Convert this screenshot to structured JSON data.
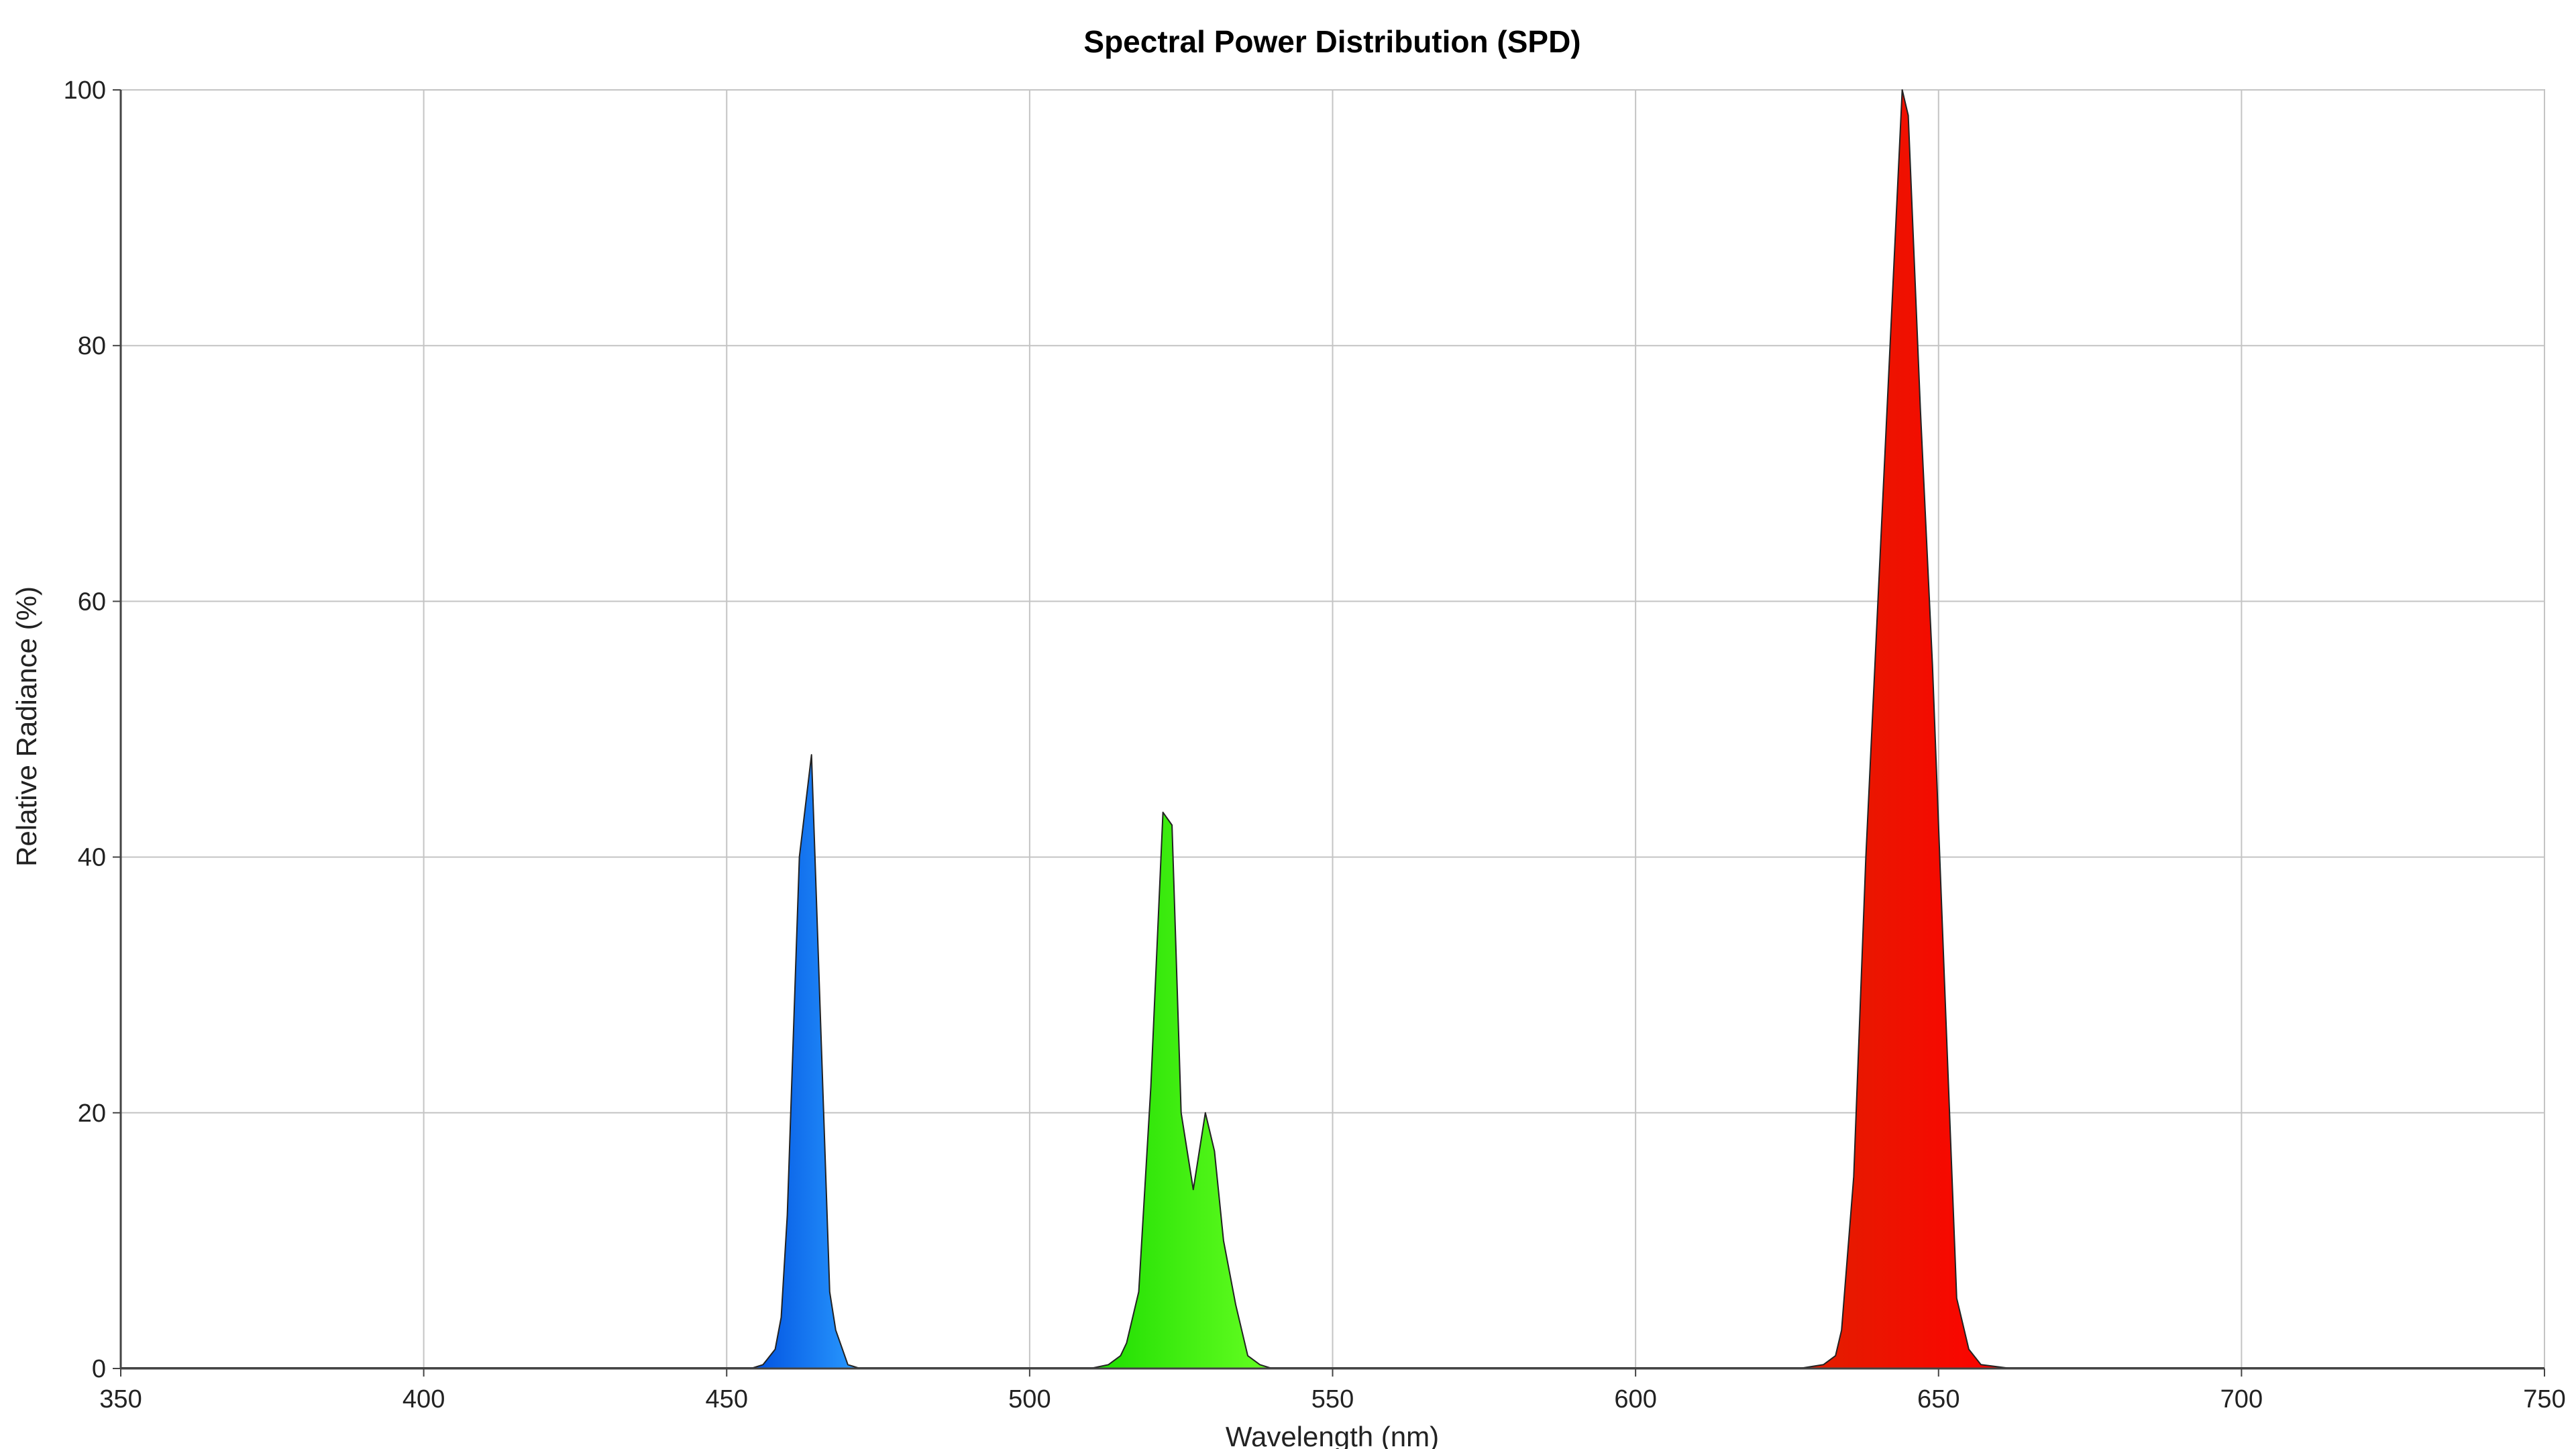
{
  "chart_data": {
    "type": "area",
    "title": "Spectral Power Distribution (SPD)",
    "xlabel": "Wavelength (nm)",
    "ylabel": "Relative Radiance (%)",
    "xlim": [
      350,
      750
    ],
    "ylim": [
      0,
      100
    ],
    "x_ticks": [
      350,
      400,
      450,
      500,
      550,
      600,
      650,
      700,
      750
    ],
    "y_ticks": [
      0,
      20,
      40,
      60,
      80,
      100
    ],
    "grid": true,
    "legend": "none",
    "series": [
      {
        "color_dark": "#0050e0",
        "color_light": "#2a9bff",
        "x": [
          454,
          456,
          458,
          459,
          460,
          462,
          464,
          466,
          467,
          468,
          470,
          472
        ],
        "y": [
          0,
          0.3,
          1.5,
          4,
          12,
          40,
          48,
          20,
          6,
          3,
          0.3,
          0
        ]
      },
      {
        "color_dark": "#1cdc00",
        "color_light": "#66ff22",
        "x": [
          510,
          513,
          515,
          516,
          518,
          520,
          522,
          523.5,
          525,
          527,
          529,
          530.5,
          532,
          534,
          536,
          538,
          540
        ],
        "y": [
          0,
          0.3,
          1,
          2,
          6,
          22,
          43.5,
          42.5,
          20,
          14,
          20,
          17,
          10,
          5,
          1,
          0.3,
          0
        ]
      },
      {
        "color_dark": "#e02000",
        "color_light": "#ff0000",
        "x": [
          627,
          631,
          633,
          634,
          636,
          638,
          640,
          642,
          644,
          645,
          647,
          649,
          651,
          653,
          655,
          657,
          662
        ],
        "y": [
          0,
          0.3,
          1,
          3,
          15,
          40,
          60,
          80,
          100,
          98,
          75,
          55,
          30,
          5.5,
          1.5,
          0.3,
          0
        ]
      }
    ]
  }
}
